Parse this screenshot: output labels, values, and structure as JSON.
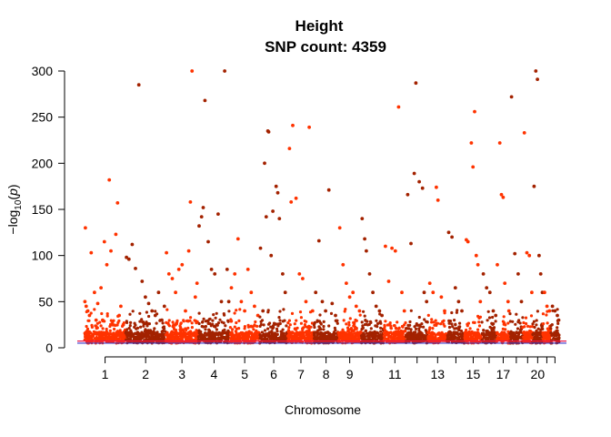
{
  "chart_data": {
    "type": "scatter",
    "subtype": "manhattan",
    "title": "Height",
    "subtitle": "SNP count: 4359",
    "xlabel": "Chromosome",
    "ylabel_parts": {
      "prefix": "−log",
      "sub": "10",
      "mid": "(",
      "var": "p",
      "suffix": ")"
    },
    "ylim": [
      0,
      300
    ],
    "yticks": [
      0,
      50,
      100,
      150,
      200,
      250,
      300
    ],
    "grid": false,
    "legend": "none",
    "x_tick_labels_shown": [
      "1",
      "2",
      "3",
      "4",
      "5",
      "6",
      "7",
      "8",
      "9",
      "11",
      "13",
      "15",
      "17",
      "20"
    ],
    "chromosomes": [
      {
        "chr": "1",
        "length": 249
      },
      {
        "chr": "2",
        "length": 243
      },
      {
        "chr": "3",
        "length": 198
      },
      {
        "chr": "4",
        "length": 191
      },
      {
        "chr": "5",
        "length": 181
      },
      {
        "chr": "6",
        "length": 171
      },
      {
        "chr": "7",
        "length": 159
      },
      {
        "chr": "8",
        "length": 146
      },
      {
        "chr": "9",
        "length": 141
      },
      {
        "chr": "10",
        "length": 136
      },
      {
        "chr": "11",
        "length": 135
      },
      {
        "chr": "12",
        "length": 134
      },
      {
        "chr": "13",
        "length": 115
      },
      {
        "chr": "14",
        "length": 107
      },
      {
        "chr": "15",
        "length": 103
      },
      {
        "chr": "16",
        "length": 90
      },
      {
        "chr": "17",
        "length": 81
      },
      {
        "chr": "18",
        "length": 78
      },
      {
        "chr": "19",
        "length": 59
      },
      {
        "chr": "20",
        "length": 63
      },
      {
        "chr": "21",
        "length": 48
      },
      {
        "chr": "22",
        "length": 51
      }
    ],
    "colors": {
      "odd": "#ff3300",
      "even": "#a32200",
      "line_red": "#e8174a",
      "line_blue": "#3a3acc"
    },
    "significance_lines": [
      {
        "y": 7.3,
        "color": "#e8174a"
      },
      {
        "y": 5,
        "color": "#3a3acc"
      }
    ],
    "series": [
      {
        "chr": "1",
        "points": [
          [
            2,
            50
          ],
          [
            5,
            130
          ],
          [
            10,
            45
          ],
          [
            20,
            40
          ],
          [
            30,
            35
          ],
          [
            40,
            103
          ],
          [
            60,
            60
          ],
          [
            70,
            30
          ],
          [
            80,
            48
          ],
          [
            100,
            65
          ],
          [
            110,
            30
          ],
          [
            120,
            115
          ],
          [
            135,
            90
          ],
          [
            150,
            182
          ],
          [
            160,
            105
          ],
          [
            170,
            25
          ],
          [
            190,
            123
          ],
          [
            200,
            157
          ],
          [
            210,
            35
          ],
          [
            220,
            45
          ],
          [
            235,
            25
          ]
        ]
      },
      {
        "chr": "2",
        "points": [
          [
            5,
            98
          ],
          [
            20,
            96
          ],
          [
            40,
            112
          ],
          [
            60,
            86
          ],
          [
            80,
            285
          ],
          [
            100,
            72
          ],
          [
            120,
            55
          ],
          [
            140,
            48
          ],
          [
            160,
            40
          ],
          [
            180,
            35
          ],
          [
            200,
            60
          ],
          [
            220,
            30
          ],
          [
            235,
            45
          ]
        ]
      },
      {
        "chr": "3",
        "points": [
          [
            5,
            103
          ],
          [
            20,
            80
          ],
          [
            40,
            75
          ],
          [
            60,
            60
          ],
          [
            80,
            85
          ],
          [
            100,
            90
          ],
          [
            120,
            40
          ],
          [
            140,
            105
          ],
          [
            150,
            158
          ],
          [
            160,
            300
          ],
          [
            180,
            55
          ],
          [
            190,
            70
          ]
        ]
      },
      {
        "chr": "4",
        "points": [
          [
            5,
            132
          ],
          [
            20,
            142
          ],
          [
            30,
            152
          ],
          [
            40,
            268
          ],
          [
            60,
            115
          ],
          [
            80,
            85
          ],
          [
            100,
            80
          ],
          [
            120,
            145
          ],
          [
            140,
            50
          ],
          [
            160,
            300
          ],
          [
            175,
            85
          ],
          [
            185,
            50
          ]
        ]
      },
      {
        "chr": "5",
        "points": [
          [
            10,
            65
          ],
          [
            30,
            80
          ],
          [
            50,
            118
          ],
          [
            70,
            50
          ],
          [
            90,
            40
          ],
          [
            110,
            85
          ],
          [
            130,
            60
          ],
          [
            150,
            45
          ],
          [
            170,
            35
          ]
        ]
      },
      {
        "chr": "6",
        "points": [
          [
            5,
            108
          ],
          [
            20,
            40
          ],
          [
            30,
            200
          ],
          [
            40,
            142
          ],
          [
            50,
            235
          ],
          [
            55,
            234
          ],
          [
            70,
            100
          ],
          [
            80,
            148
          ],
          [
            100,
            175
          ],
          [
            110,
            168
          ],
          [
            120,
            140
          ],
          [
            140,
            80
          ],
          [
            155,
            60
          ]
        ]
      },
      {
        "chr": "7",
        "points": [
          [
            10,
            216
          ],
          [
            20,
            158
          ],
          [
            30,
            241
          ],
          [
            50,
            162
          ],
          [
            70,
            80
          ],
          [
            90,
            75
          ],
          [
            110,
            50
          ],
          [
            130,
            239
          ],
          [
            150,
            40
          ]
        ]
      },
      {
        "chr": "8",
        "points": [
          [
            10,
            60
          ],
          [
            30,
            116
          ],
          [
            50,
            50
          ],
          [
            70,
            40
          ],
          [
            90,
            171
          ],
          [
            110,
            48
          ],
          [
            130,
            35
          ]
        ]
      },
      {
        "chr": "9",
        "points": [
          [
            10,
            130
          ],
          [
            30,
            90
          ],
          [
            50,
            70
          ],
          [
            70,
            55
          ],
          [
            90,
            60
          ],
          [
            110,
            45
          ],
          [
            130,
            40
          ]
        ]
      },
      {
        "chr": "10",
        "points": [
          [
            5,
            140
          ],
          [
            20,
            118
          ],
          [
            30,
            105
          ],
          [
            50,
            80
          ],
          [
            70,
            60
          ],
          [
            90,
            45
          ],
          [
            110,
            40
          ],
          [
            125,
            35
          ]
        ]
      },
      {
        "chr": "11",
        "points": [
          [
            10,
            110
          ],
          [
            30,
            72
          ],
          [
            50,
            108
          ],
          [
            70,
            105
          ],
          [
            90,
            261
          ],
          [
            110,
            60
          ],
          [
            125,
            40
          ]
        ]
      },
      {
        "chr": "12",
        "points": [
          [
            10,
            166
          ],
          [
            30,
            113
          ],
          [
            50,
            189
          ],
          [
            60,
            287
          ],
          [
            80,
            180
          ],
          [
            100,
            173
          ],
          [
            110,
            60
          ],
          [
            125,
            50
          ]
        ]
      },
      {
        "chr": "13",
        "points": [
          [
            10,
            70
          ],
          [
            30,
            60
          ],
          [
            50,
            174
          ],
          [
            60,
            160
          ],
          [
            80,
            55
          ],
          [
            100,
            40
          ]
        ]
      },
      {
        "chr": "14",
        "points": [
          [
            10,
            125
          ],
          [
            30,
            120
          ],
          [
            50,
            65
          ],
          [
            70,
            50
          ],
          [
            90,
            40
          ]
        ]
      },
      {
        "chr": "15",
        "points": [
          [
            10,
            117
          ],
          [
            20,
            115
          ],
          [
            40,
            222
          ],
          [
            50,
            196
          ],
          [
            60,
            256
          ],
          [
            70,
            100
          ],
          [
            80,
            90
          ],
          [
            95,
            50
          ]
        ]
      },
      {
        "chr": "16",
        "points": [
          [
            10,
            80
          ],
          [
            30,
            65
          ],
          [
            50,
            60
          ],
          [
            70,
            40
          ],
          [
            85,
            35
          ]
        ]
      },
      {
        "chr": "17",
        "points": [
          [
            5,
            90
          ],
          [
            20,
            222
          ],
          [
            30,
            166
          ],
          [
            40,
            163
          ],
          [
            50,
            70
          ],
          [
            70,
            50
          ],
          [
            75,
            40
          ]
        ]
      },
      {
        "chr": "18",
        "points": [
          [
            10,
            272
          ],
          [
            30,
            102
          ],
          [
            50,
            80
          ],
          [
            70,
            50
          ]
        ]
      },
      {
        "chr": "19",
        "points": [
          [
            10,
            233
          ],
          [
            25,
            103
          ],
          [
            40,
            100
          ],
          [
            55,
            60
          ]
        ]
      },
      {
        "chr": "20",
        "points": [
          [
            10,
            175
          ],
          [
            20,
            300
          ],
          [
            30,
            291
          ],
          [
            40,
            100
          ],
          [
            50,
            80
          ],
          [
            60,
            60
          ]
        ]
      },
      {
        "chr": "21",
        "points": [
          [
            10,
            60
          ],
          [
            25,
            45
          ],
          [
            40,
            40
          ]
        ]
      },
      {
        "chr": "22",
        "points": [
          [
            10,
            45
          ],
          [
            25,
            40
          ],
          [
            40,
            35
          ],
          [
            48,
            30
          ]
        ]
      }
    ]
  }
}
